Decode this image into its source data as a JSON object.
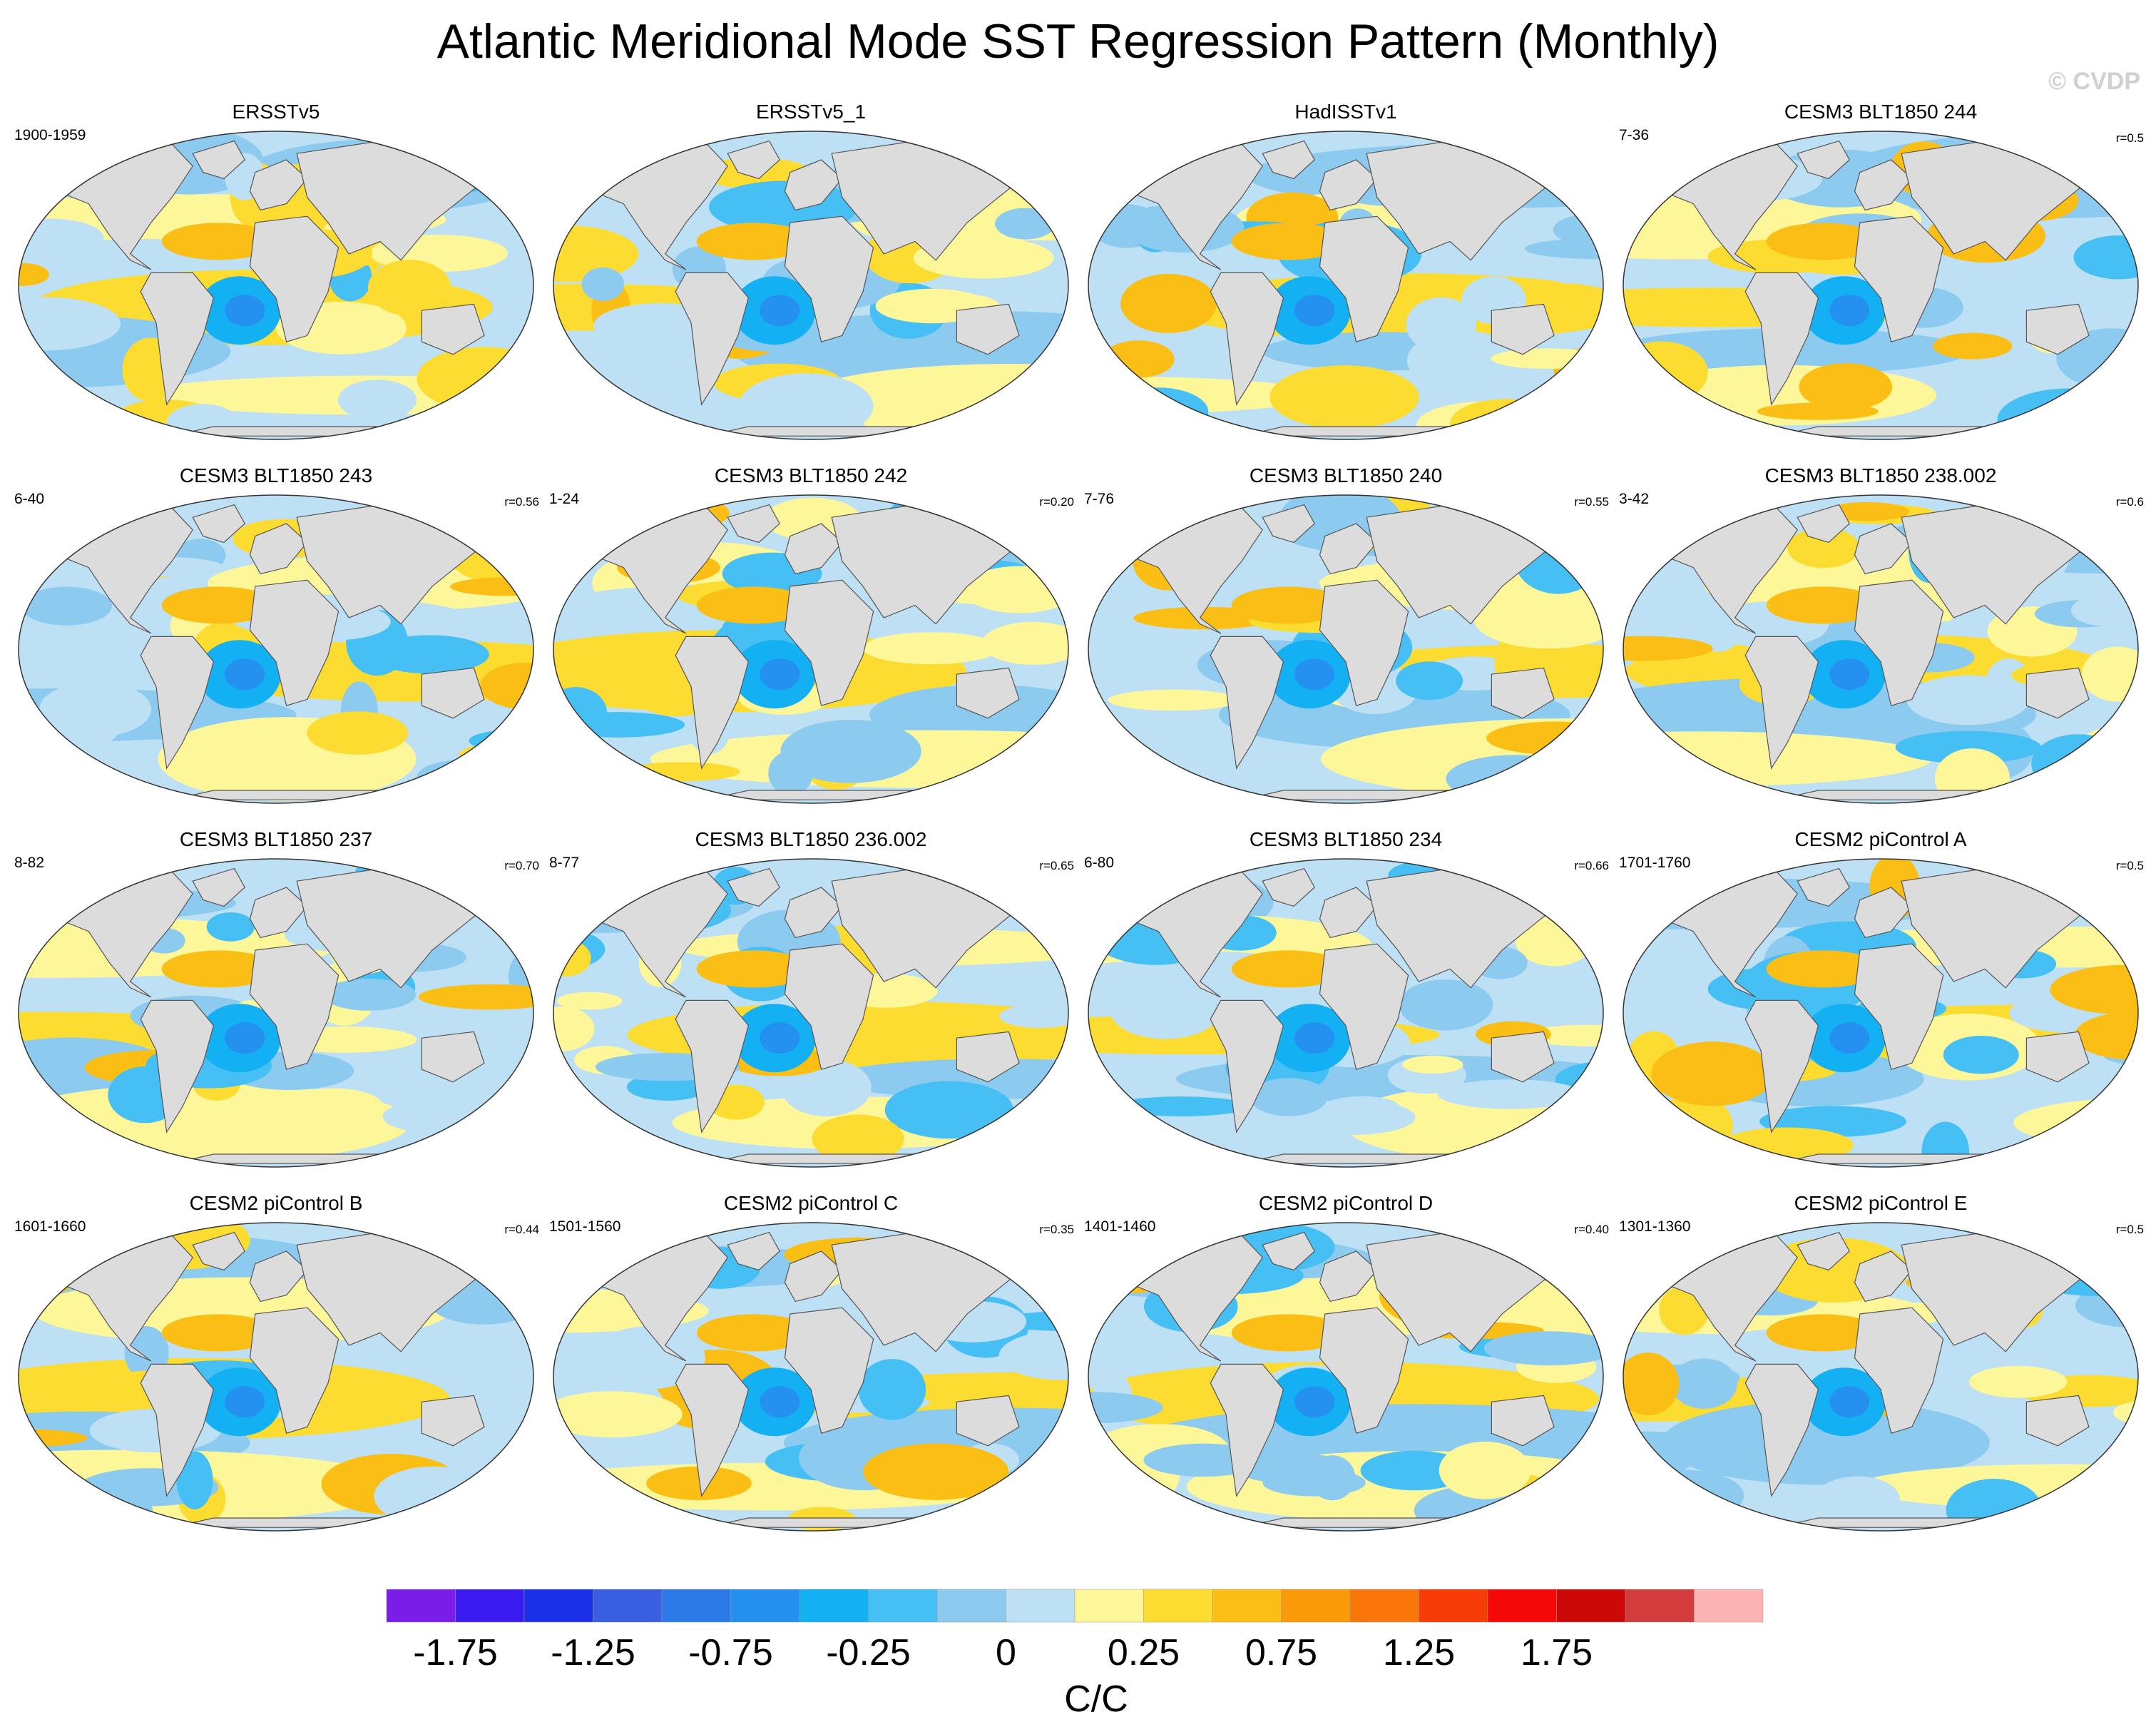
{
  "title": "Atlantic Meridional Mode SST Regression Pattern (Monthly)",
  "watermark": "© CVDP",
  "panels": [
    {
      "title": "ERSSTv5",
      "years": "1900-1959",
      "r": ""
    },
    {
      "title": "ERSSTv5_1",
      "years": "",
      "r": ""
    },
    {
      "title": "HadISSTv1",
      "years": "",
      "r": ""
    },
    {
      "title": "CESM3 BLT1850 244",
      "years": "7-36",
      "r": "r=0.5"
    },
    {
      "title": "CESM3 BLT1850 243",
      "years": "6-40",
      "r": "r=0.56"
    },
    {
      "title": "CESM3 BLT1850 242",
      "years": "1-24",
      "r": "r=0.20"
    },
    {
      "title": "CESM3 BLT1850 240",
      "years": "7-76",
      "r": "r=0.55"
    },
    {
      "title": "CESM3 BLT1850 238.002",
      "years": "3-42",
      "r": "r=0.6"
    },
    {
      "title": "CESM3 BLT1850 237",
      "years": "8-82",
      "r": "r=0.70"
    },
    {
      "title": "CESM3 BLT1850 236.002",
      "years": "8-77",
      "r": "r=0.65"
    },
    {
      "title": "CESM3 BLT1850 234",
      "years": "6-80",
      "r": "r=0.66"
    },
    {
      "title": "CESM2 piControl A",
      "years": "1701-1760",
      "r": "r=0.5"
    },
    {
      "title": "CESM2 piControl B",
      "years": "1601-1660",
      "r": "r=0.44"
    },
    {
      "title": "CESM2 piControl C",
      "years": "1501-1560",
      "r": "r=0.35"
    },
    {
      "title": "CESM2 piControl D",
      "years": "1401-1460",
      "r": "r=0.40"
    },
    {
      "title": "CESM2 piControl E",
      "years": "1301-1360",
      "r": "r=0.5"
    }
  ],
  "chart_data": {
    "type": "heatmap",
    "colorbar": {
      "levels": [
        -1.75,
        -1.5,
        -1.25,
        -1.0,
        -0.75,
        -0.5,
        -0.25,
        -0.1,
        0,
        0.1,
        0.25,
        0.5,
        0.75,
        1.0,
        1.25,
        1.5,
        1.75,
        2.0,
        2.25
      ],
      "colors": [
        "#7b1de8",
        "#3b1af0",
        "#1a30e8",
        "#3a5ee0",
        "#2c7ae8",
        "#2490f0",
        "#14b0f4",
        "#46c0f4",
        "#8ccbef",
        "#bde0f4",
        "#fef79a",
        "#fcdc30",
        "#fbbe14",
        "#fb9a08",
        "#fb7608",
        "#f73c08",
        "#f40808",
        "#cc0808",
        "#d23c3c",
        "#fcb4b4"
      ],
      "tick_labels": [
        "-1.75",
        "-1.25",
        "-0.75",
        "-0.25",
        "0",
        "0.25",
        "0.75",
        "1.25",
        "1.75"
      ],
      "tick_levels": [
        -1.75,
        -1.25,
        -0.75,
        -0.25,
        0,
        0.25,
        0.75,
        1.25,
        1.75
      ],
      "label": "C/C"
    },
    "land_color": "#dcdcdc",
    "projection": "Robinson-like, global"
  }
}
